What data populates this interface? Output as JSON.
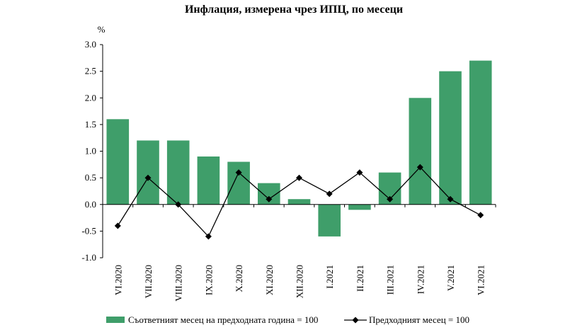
{
  "chart_data": {
    "type": "bar",
    "title": "Инфлация, измерена чрез ИПЦ, по месеци",
    "ylabel": "%",
    "xlabel": "",
    "ylim": [
      -1.0,
      3.0
    ],
    "yticks": [
      "3.0",
      "2.5",
      "2.0",
      "1.5",
      "1.0",
      "0.5",
      "0.0",
      "-0.5",
      "-1.0"
    ],
    "categories": [
      "VI.2020",
      "VII.2020",
      "VIII.2020",
      "IX.2020",
      "X.2020",
      "XI.2020",
      "XII.2020",
      "I.2021",
      "II.2021",
      "III.2021",
      "IV.2021",
      "V.2021",
      "VI.2021"
    ],
    "series": [
      {
        "name": "Съответният месец на предходната година = 100",
        "kind": "bar",
        "color": "#3f9e6a",
        "values": [
          1.6,
          1.2,
          1.2,
          0.9,
          0.8,
          0.4,
          0.1,
          -0.6,
          -0.1,
          0.6,
          2.0,
          2.5,
          2.7
        ]
      },
      {
        "name": "Предходният месец = 100",
        "kind": "line",
        "color": "#000000",
        "marker": "diamond",
        "values": [
          -0.4,
          0.5,
          0.0,
          -0.6,
          0.6,
          0.1,
          0.5,
          0.2,
          0.6,
          0.1,
          0.7,
          0.1,
          -0.2
        ]
      }
    ],
    "legend": "bottom"
  }
}
